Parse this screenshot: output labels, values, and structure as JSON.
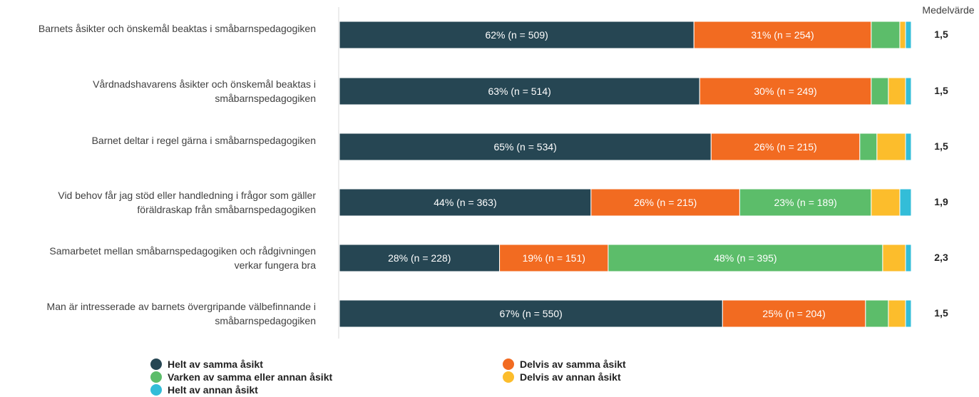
{
  "chart_data": {
    "type": "bar",
    "orientation": "horizontal",
    "stacked": true,
    "mean_header": "Medelvärde",
    "categories": [
      "Barnets åsikter och önskemål beaktas i småbarnspedagogiken",
      "Vårdnadshavarens åsikter och önskemål beaktas i småbarnspedagogiken",
      "Barnet deltar i regel gärna i småbarnspedagogiken",
      "Vid behov får jag stöd eller handledning i frågor som gäller föräldraskap från småbarnspedagogiken",
      "Samarbetet mellan småbarnspedagogiken och rådgivningen verkar fungera bra",
      "Man är intresserade av barnets övergripande välbefinnande i småbarnspedagogiken"
    ],
    "category_lines": [
      [
        "Barnets åsikter och önskemål beaktas i småbarnspedagogiken"
      ],
      [
        "Vårdnadshavarens åsikter och önskemål beaktas i",
        "småbarnspedagogiken"
      ],
      [
        "Barnet deltar i regel gärna i småbarnspedagogiken"
      ],
      [
        "Vid behov får jag stöd eller handledning i frågor som gäller",
        "föräldraskap från småbarnspedagogiken"
      ],
      [
        "Samarbetet mellan småbarnspedagogiken och rådgivningen",
        "verkar fungera bra"
      ],
      [
        "Man är intresserade av barnets övergripande välbefinnande i",
        "småbarnspedagogiken"
      ]
    ],
    "series": [
      {
        "name": "Helt av samma åsikt",
        "color": "#264653",
        "values": [
          62,
          63,
          65,
          44,
          28,
          67
        ],
        "labels": [
          "62% (n = 509)",
          "63% (n = 514)",
          "65% (n = 534)",
          "44% (n = 363)",
          "28% (n = 228)",
          "67% (n = 550)"
        ]
      },
      {
        "name": "Delvis av samma åsikt",
        "color": "#F26B21",
        "values": [
          31,
          30,
          26,
          26,
          19,
          25
        ],
        "labels": [
          "31% (n = 254)",
          "30% (n = 249)",
          "26% (n = 215)",
          "26% (n = 215)",
          "19% (n = 151)",
          "25% (n = 204)"
        ]
      },
      {
        "name": "Varken av samma eller annan åsikt",
        "color": "#5CBD6A",
        "values": [
          5,
          3,
          3,
          23,
          48,
          4
        ],
        "labels": [
          "",
          "",
          "",
          "23% (n = 189)",
          "48% (n = 395)",
          ""
        ]
      },
      {
        "name": "Delvis av annan åsikt",
        "color": "#FCBD2C",
        "values": [
          1,
          3,
          5,
          5,
          4,
          3
        ],
        "labels": [
          "",
          "",
          "",
          "",
          "",
          ""
        ]
      },
      {
        "name": "Helt av annan åsikt",
        "color": "#33BDD8",
        "values": [
          1,
          1,
          1,
          2,
          1,
          1
        ],
        "labels": [
          "",
          "",
          "",
          "",
          "",
          ""
        ]
      }
    ],
    "means": [
      "1,5",
      "1,5",
      "1,5",
      "1,9",
      "2,3",
      "1,5"
    ],
    "xlim": [
      0,
      100
    ],
    "grid": false,
    "legend_position": "bottom"
  }
}
